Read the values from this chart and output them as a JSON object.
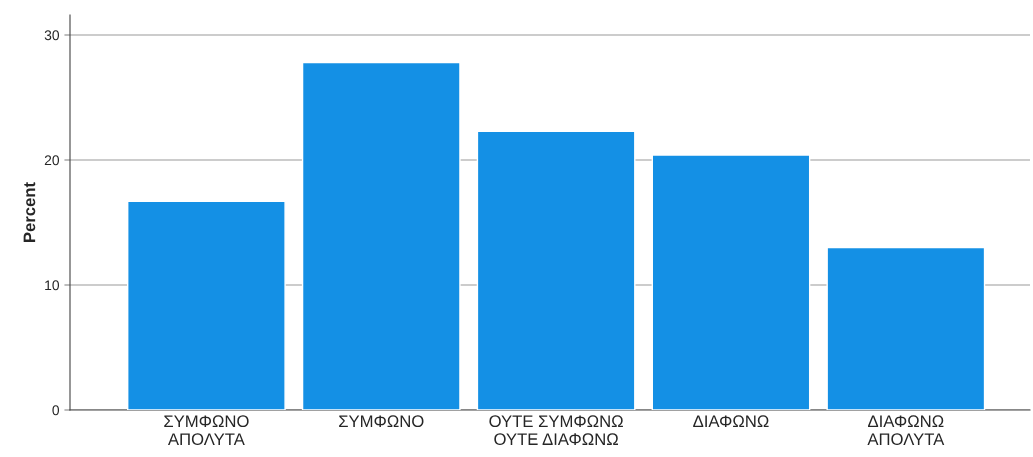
{
  "chart_data": {
    "type": "bar",
    "ylabel": "Percent",
    "categories": [
      "ΣΥΜΦΩΝΟ\nΑΠΟΛΥΤΑ",
      "ΣΥΜΦΩΝΟ",
      "ΟΥΤΕ ΣΥΜΦΩΝΩ\nΟΥΤΕ ΔΙΑΦΩΝΩ",
      "ΔΙΑΦΩΝΩ",
      "ΔΙΑΦΩΝΩ\nΑΠΟΛΥΤΑ"
    ],
    "values": [
      16.7,
      27.8,
      22.3,
      20.4,
      13.0
    ],
    "color": "#1490e5",
    "ylim": [
      0,
      31.6
    ],
    "yticks": [
      0,
      10,
      20,
      30
    ],
    "grid": "y",
    "legend": false
  }
}
